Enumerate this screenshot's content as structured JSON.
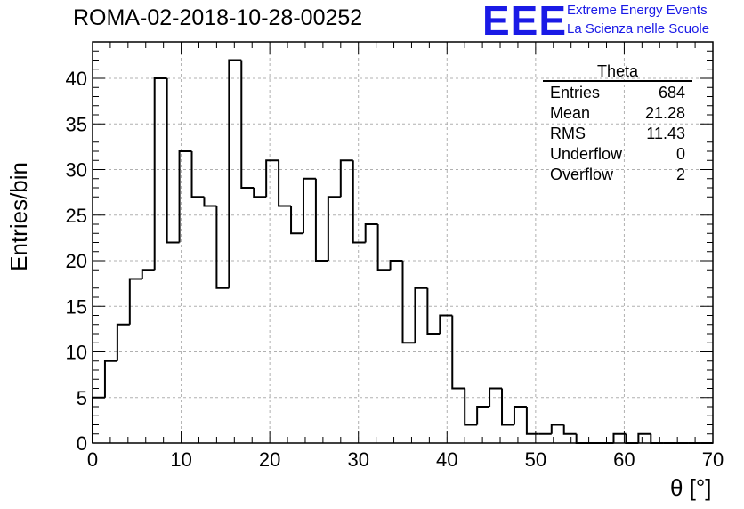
{
  "header": {
    "title": "ROMA-02-2018-10-28-00252",
    "logo_text": "EEE",
    "logo_line1": "Extreme Energy Events",
    "logo_line2": "La Scienza nelle Scuole"
  },
  "stats_box": {
    "name": "Theta",
    "rows": [
      {
        "label": "Entries",
        "value": "684"
      },
      {
        "label": "Mean",
        "value": "21.28"
      },
      {
        "label": "RMS",
        "value": "11.43"
      },
      {
        "label": "Underflow",
        "value": "0"
      },
      {
        "label": "Overflow",
        "value": "2"
      }
    ]
  },
  "colors": {
    "line": "#000000",
    "grid": "#b0b0b0",
    "logo": "#1a1ae6"
  },
  "chart_data": {
    "type": "bar",
    "style": "step-histogram",
    "title": "ROMA-02-2018-10-28-00252",
    "xlabel": "θ [°]",
    "ylabel": "Entries/bin",
    "xlim": [
      0,
      70
    ],
    "ylim": [
      0,
      44
    ],
    "bin_width": 1.4,
    "bin_edges_start": 0,
    "x_ticks": [
      "0",
      "10",
      "20",
      "30",
      "40",
      "50",
      "60",
      "70"
    ],
    "y_ticks": [
      "0",
      "5",
      "10",
      "15",
      "20",
      "25",
      "30",
      "35",
      "40"
    ],
    "grid": true,
    "values": [
      5,
      9,
      13,
      18,
      19,
      40,
      22,
      32,
      27,
      26,
      17,
      42,
      28,
      27,
      31,
      26,
      23,
      29,
      20,
      27,
      31,
      22,
      24,
      19,
      20,
      11,
      17,
      12,
      14,
      6,
      2,
      4,
      6,
      2,
      4,
      1,
      1,
      2,
      1,
      0,
      0,
      0,
      1,
      0,
      1,
      0,
      0,
      0,
      0,
      0
    ]
  }
}
